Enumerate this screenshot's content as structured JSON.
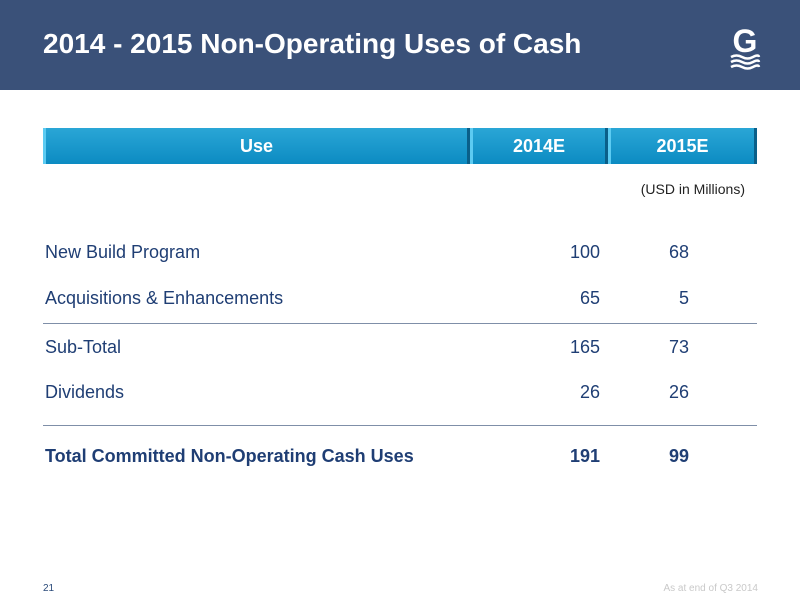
{
  "slide": {
    "title": "2014 - 2015 Non-Operating Uses of Cash",
    "page_number": "21",
    "footnote": "As at end of Q3 2014"
  },
  "table": {
    "headers": [
      "Use",
      "2014E",
      "2015E"
    ],
    "units": "(USD in Millions)",
    "rows": [
      {
        "label": "New Build Program",
        "v2014": "100",
        "v2015": "68"
      },
      {
        "label": "Acquisitions & Enhancements",
        "v2014": "65",
        "v2015": "5"
      },
      {
        "label": "Sub-Total",
        "v2014": "165",
        "v2015": "73"
      },
      {
        "label": "Dividends",
        "v2014": "26",
        "v2015": "26"
      },
      {
        "label": "Total Committed Non-Operating Cash Uses",
        "v2014": "191",
        "v2015": "99"
      }
    ]
  },
  "colors": {
    "header_bar": "#3a5179",
    "table_header": "#1a9ad0",
    "body_text": "#1f3e74"
  },
  "logo": {
    "letter": "G",
    "icon": "company-logo-icon"
  }
}
